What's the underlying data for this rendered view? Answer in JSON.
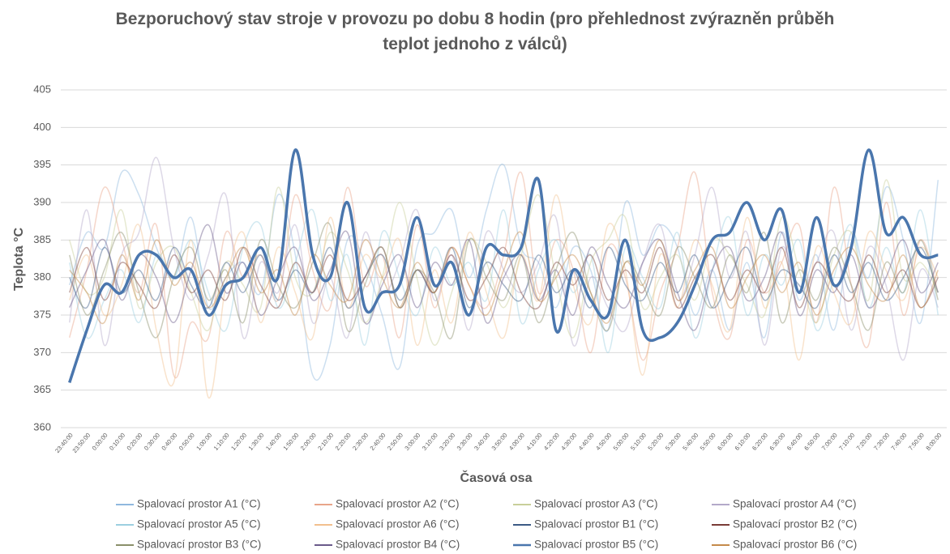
{
  "chart_data": {
    "type": "line",
    "title": "Bezporuchový stav stroje v provozu po dobu 8 hodin (pro přehlednost zvýrazněn průběh teplot jednoho z válců)",
    "xlabel": "Časová osa",
    "ylabel": "Teplota °C",
    "categories": [
      "23:40:00",
      "23:50:00",
      "0:00:00",
      "0:10:00",
      "0:20:00",
      "0:30:00",
      "0:40:00",
      "0:50:00",
      "1:00:00",
      "1:10:00",
      "1:20:00",
      "1:30:00",
      "1:40:00",
      "1:50:00",
      "2:00:00",
      "2:10:00",
      "2:20:00",
      "2:30:00",
      "2:40:00",
      "2:50:00",
      "3:00:00",
      "3:10:00",
      "3:20:00",
      "3:30:00",
      "3:40:00",
      "3:50:00",
      "4:00:00",
      "4:10:00",
      "4:20:00",
      "4:30:00",
      "4:40:00",
      "4:50:00",
      "5:00:00",
      "5:10:00",
      "5:20:00",
      "5:30:00",
      "5:40:00",
      "5:50:00",
      "6:00:00",
      "6:10:00",
      "6:20:00",
      "6:30:00",
      "6:40:00",
      "6:50:00",
      "7:00:00",
      "7:10:00",
      "7:20:00",
      "7:30:00",
      "7:40:00",
      "7:50:00",
      "8:00:00"
    ],
    "ylim": [
      360,
      405
    ],
    "yticks": [
      360,
      365,
      370,
      375,
      380,
      385,
      390,
      395,
      400,
      405
    ],
    "grid": true,
    "legend": "bottom",
    "series": [
      {
        "name": "Spalovací prostor A1 (°C)",
        "color": "#8fb8de",
        "values": [
          379,
          386,
          384,
          394,
          391,
          384,
          380,
          388,
          376,
          380,
          382,
          378,
          391,
          383,
          367,
          371,
          385,
          382,
          375,
          368,
          384,
          386,
          389,
          380,
          389,
          395,
          384,
          382,
          376,
          384,
          381,
          373,
          390,
          383,
          387,
          384,
          375,
          381,
          373,
          382,
          372,
          386,
          377,
          383,
          373,
          386,
          380,
          392,
          385,
          374,
          393
        ]
      },
      {
        "name": "Spalovací prostor A2 (°C)",
        "color": "#e8a58a",
        "values": [
          372,
          381,
          392,
          385,
          378,
          387,
          367,
          374,
          372,
          386,
          380,
          383,
          377,
          391,
          381,
          376,
          392,
          379,
          383,
          372,
          387,
          376,
          384,
          379,
          376,
          383,
          394,
          378,
          385,
          381,
          370,
          384,
          380,
          369,
          378,
          384,
          394,
          378,
          372,
          385,
          378,
          382,
          387,
          374,
          392,
          379,
          371,
          390,
          375,
          385,
          378
        ]
      },
      {
        "name": "Spalovací prostor A3 (°C)",
        "color": "#c8cf9a",
        "values": [
          385,
          378,
          380,
          389,
          376,
          382,
          384,
          378,
          373,
          382,
          379,
          376,
          392,
          380,
          378,
          386,
          381,
          374,
          380,
          390,
          380,
          371,
          378,
          385,
          382,
          376,
          383,
          391,
          380,
          372,
          382,
          385,
          388,
          376,
          380,
          383,
          377,
          385,
          383,
          379,
          375,
          388,
          381,
          374,
          383,
          386,
          377,
          393,
          380,
          382,
          378
        ]
      },
      {
        "name": "Spalovací prostor A4 (°C)",
        "color": "#b3a9c9",
        "values": [
          374,
          389,
          371,
          383,
          386,
          396,
          384,
          377,
          383,
          391,
          372,
          382,
          378,
          387,
          374,
          380,
          372,
          386,
          378,
          382,
          389,
          377,
          383,
          373,
          386,
          381,
          378,
          382,
          388,
          371,
          380,
          376,
          373,
          382,
          387,
          377,
          383,
          392,
          380,
          386,
          371,
          384,
          378,
          382,
          386,
          373,
          384,
          379,
          369,
          381,
          376
        ]
      },
      {
        "name": "Spalovací prostor A5 (°C)",
        "color": "#9ccfe0",
        "values": [
          382,
          372,
          377,
          381,
          374,
          383,
          380,
          385,
          378,
          373,
          384,
          387,
          376,
          382,
          389,
          377,
          383,
          371,
          386,
          380,
          375,
          384,
          379,
          382,
          377,
          389,
          374,
          381,
          385,
          378,
          383,
          370,
          384,
          380,
          376,
          386,
          372,
          381,
          388,
          375,
          383,
          379,
          385,
          373,
          380,
          387,
          376,
          384,
          378,
          389,
          375
        ]
      },
      {
        "name": "Spalovací prostor A6 (°C)",
        "color": "#f2c08e",
        "values": [
          377,
          383,
          375,
          379,
          387,
          373,
          366,
          385,
          364,
          379,
          386,
          374,
          384,
          378,
          372,
          388,
          376,
          383,
          380,
          385,
          371,
          381,
          374,
          386,
          378,
          372,
          383,
          377,
          391,
          379,
          374,
          387,
          381,
          367,
          383,
          376,
          385,
          379,
          373,
          388,
          376,
          382,
          369,
          384,
          378,
          374,
          386,
          381,
          377,
          384,
          380
        ]
      },
      {
        "name": "Spalovací prostor B1 (°C)",
        "color": "#3b5a85",
        "values": [
          380,
          376,
          384,
          378,
          381,
          377,
          384,
          379,
          376,
          382,
          378,
          383,
          377,
          381,
          378,
          384,
          376,
          380,
          383,
          377,
          381,
          378,
          384,
          376,
          382,
          379,
          377,
          383,
          378,
          381,
          376,
          384,
          379,
          377,
          382,
          378,
          383,
          376,
          380,
          384,
          377,
          381,
          379,
          376,
          383,
          378,
          382,
          377,
          380,
          384,
          378
        ]
      },
      {
        "name": "Spalovací prostor B2 (°C)",
        "color": "#7a3b36",
        "values": [
          378,
          384,
          377,
          382,
          379,
          376,
          383,
          378,
          381,
          377,
          384,
          379,
          376,
          382,
          378,
          383,
          377,
          380,
          384,
          376,
          381,
          378,
          383,
          377,
          380,
          384,
          378,
          376,
          382,
          379,
          383,
          377,
          381,
          378,
          384,
          376,
          380,
          383,
          377,
          381,
          378,
          384,
          376,
          382,
          379,
          377,
          383,
          378,
          381,
          376,
          380
        ]
      },
      {
        "name": "Spalovací prostor B3 (°C)",
        "color": "#8a8f6a",
        "values": [
          383,
          375,
          381,
          386,
          378,
          372,
          380,
          384,
          377,
          381,
          374,
          385,
          379,
          376,
          382,
          387,
          373,
          379,
          384,
          376,
          381,
          378,
          372,
          385,
          380,
          377,
          383,
          374,
          381,
          386,
          378,
          373,
          382,
          379,
          375,
          384,
          380,
          376,
          383,
          378,
          386,
          374,
          381,
          377,
          384,
          379,
          373,
          382,
          378,
          385,
          377
        ]
      },
      {
        "name": "Spalovací prostor B4 (°C)",
        "color": "#6a5a8a",
        "values": [
          376,
          381,
          385,
          377,
          383,
          380,
          374,
          381,
          387,
          378,
          382,
          375,
          380,
          384,
          377,
          381,
          386,
          374,
          379,
          383,
          376,
          382,
          379,
          385,
          374,
          380,
          383,
          377,
          381,
          375,
          384,
          379,
          376,
          382,
          385,
          378,
          373,
          381,
          384,
          377,
          380,
          386,
          375,
          381,
          378,
          383,
          376,
          380,
          385,
          378,
          382
        ]
      },
      {
        "name": "Spalovací prostor B5 (°C)",
        "color": "#4a76ad",
        "highlighted": true,
        "values": [
          366,
          373,
          379,
          378,
          383,
          383,
          380,
          381,
          375,
          379,
          380,
          384,
          380,
          397,
          383,
          380,
          390,
          376,
          378,
          379,
          388,
          379,
          382,
          375,
          384,
          383,
          384,
          393,
          373,
          381,
          377,
          375,
          385,
          373,
          372,
          374,
          379,
          385,
          386,
          390,
          385,
          389,
          378,
          388,
          379,
          384,
          397,
          386,
          388,
          383,
          383
        ]
      },
      {
        "name": "Spalovací prostor B6 (°C)",
        "color": "#c58a4a",
        "values": [
          381,
          378,
          374,
          383,
          377,
          385,
          379,
          382,
          376,
          380,
          384,
          378,
          381,
          375,
          383,
          379,
          377,
          385,
          380,
          376,
          382,
          378,
          384,
          379,
          375,
          381,
          386,
          377,
          380,
          383,
          378,
          374,
          382,
          379,
          385,
          377,
          381,
          384,
          376,
          380,
          383,
          378,
          382,
          375,
          381,
          384,
          379,
          377,
          383,
          376,
          381
        ]
      }
    ]
  }
}
